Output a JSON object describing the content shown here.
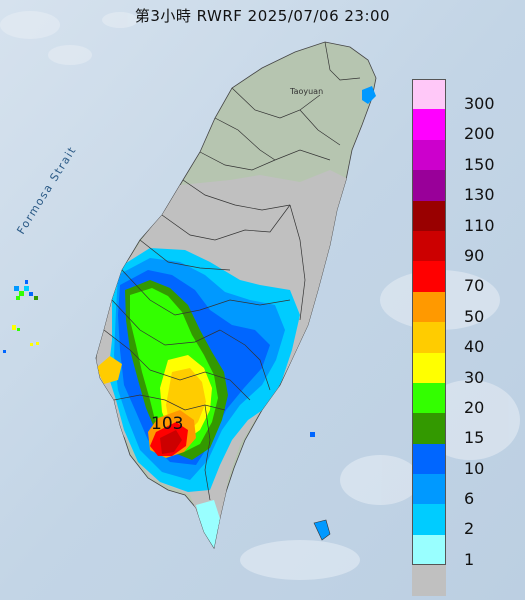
{
  "title": "第3小時  RWRF 2025/07/06 23:00",
  "map_labels": {
    "strait": "Formosa Strait",
    "city": "Taoyuan",
    "peak_value": "103"
  },
  "legend": [
    {
      "label": "300",
      "color": "#ffc8f8"
    },
    {
      "label": "200",
      "color": "#ff00ff"
    },
    {
      "label": "150",
      "color": "#cc00cc"
    },
    {
      "label": "130",
      "color": "#990099"
    },
    {
      "label": "110",
      "color": "#990000"
    },
    {
      "label": "90",
      "color": "#cc0000"
    },
    {
      "label": "70",
      "color": "#ff0000"
    },
    {
      "label": "50",
      "color": "#ff9900"
    },
    {
      "label": "40",
      "color": "#ffcc00"
    },
    {
      "label": "30",
      "color": "#ffff00"
    },
    {
      "label": "20",
      "color": "#33ff00"
    },
    {
      "label": "15",
      "color": "#339900"
    },
    {
      "label": "10",
      "color": "#0066ff"
    },
    {
      "label": "6",
      "color": "#0099ff"
    },
    {
      "label": "2",
      "color": "#00ccff"
    },
    {
      "label": "1",
      "color": "#99ffff"
    },
    {
      "label": "",
      "color": "#c0c0c0"
    }
  ]
}
